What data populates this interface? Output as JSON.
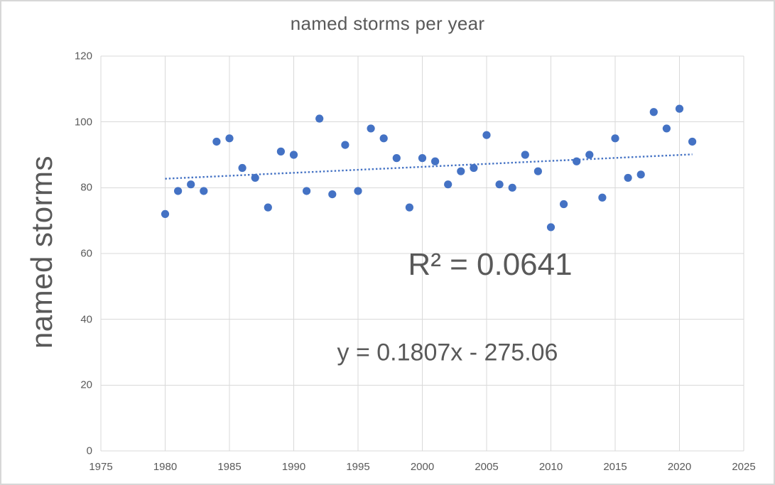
{
  "chart": {
    "title": "named storms per year",
    "y_axis_title": "named storms",
    "r_squared_label": "R² = 0.0641",
    "equation_label": "y = 0.1807x - 275.06",
    "colors": {
      "marker": "#4472C4",
      "trendline": "#4472C4",
      "gridline": "#D9D9D9",
      "text": "#595959",
      "background": "#FFFFFF",
      "frame_border": "#D7D7D7"
    }
  },
  "chart_data": {
    "type": "scatter",
    "title": "named storms per year",
    "xlabel": "",
    "ylabel": "named storms",
    "x": [
      1980,
      1981,
      1982,
      1983,
      1984,
      1985,
      1986,
      1987,
      1988,
      1989,
      1990,
      1991,
      1992,
      1993,
      1994,
      1995,
      1996,
      1997,
      1998,
      1999,
      2000,
      2001,
      2002,
      2003,
      2004,
      2005,
      2006,
      2007,
      2008,
      2009,
      2010,
      2011,
      2012,
      2013,
      2014,
      2015,
      2016,
      2017,
      2018,
      2019,
      2020,
      2021
    ],
    "y": [
      72,
      79,
      81,
      79,
      94,
      95,
      86,
      83,
      74,
      91,
      90,
      79,
      101,
      78,
      93,
      79,
      98,
      95,
      89,
      74,
      89,
      88,
      81,
      85,
      86,
      96,
      81,
      80,
      90,
      85,
      68,
      75,
      88,
      90,
      77,
      95,
      83,
      84,
      103,
      98,
      104,
      94
    ],
    "xlim": [
      1975,
      2025
    ],
    "ylim": [
      0,
      120
    ],
    "x_ticks": [
      1975,
      1980,
      1985,
      1990,
      1995,
      2000,
      2005,
      2010,
      2015,
      2020,
      2025
    ],
    "y_ticks": [
      0,
      20,
      40,
      60,
      80,
      100,
      120
    ],
    "grid": true,
    "legend": "none",
    "marker_color": "#4472C4",
    "trendline": {
      "type": "linear",
      "style": "dotted",
      "color": "#4472C4",
      "slope": 0.1807,
      "intercept": -275.06,
      "r_squared": 0.0641,
      "x_start": 1980,
      "x_end": 2021
    },
    "annotations": [
      {
        "name": "r-squared",
        "text": "R² = 0.0641"
      },
      {
        "name": "equation",
        "text": "y = 0.1807x - 275.06"
      }
    ]
  }
}
